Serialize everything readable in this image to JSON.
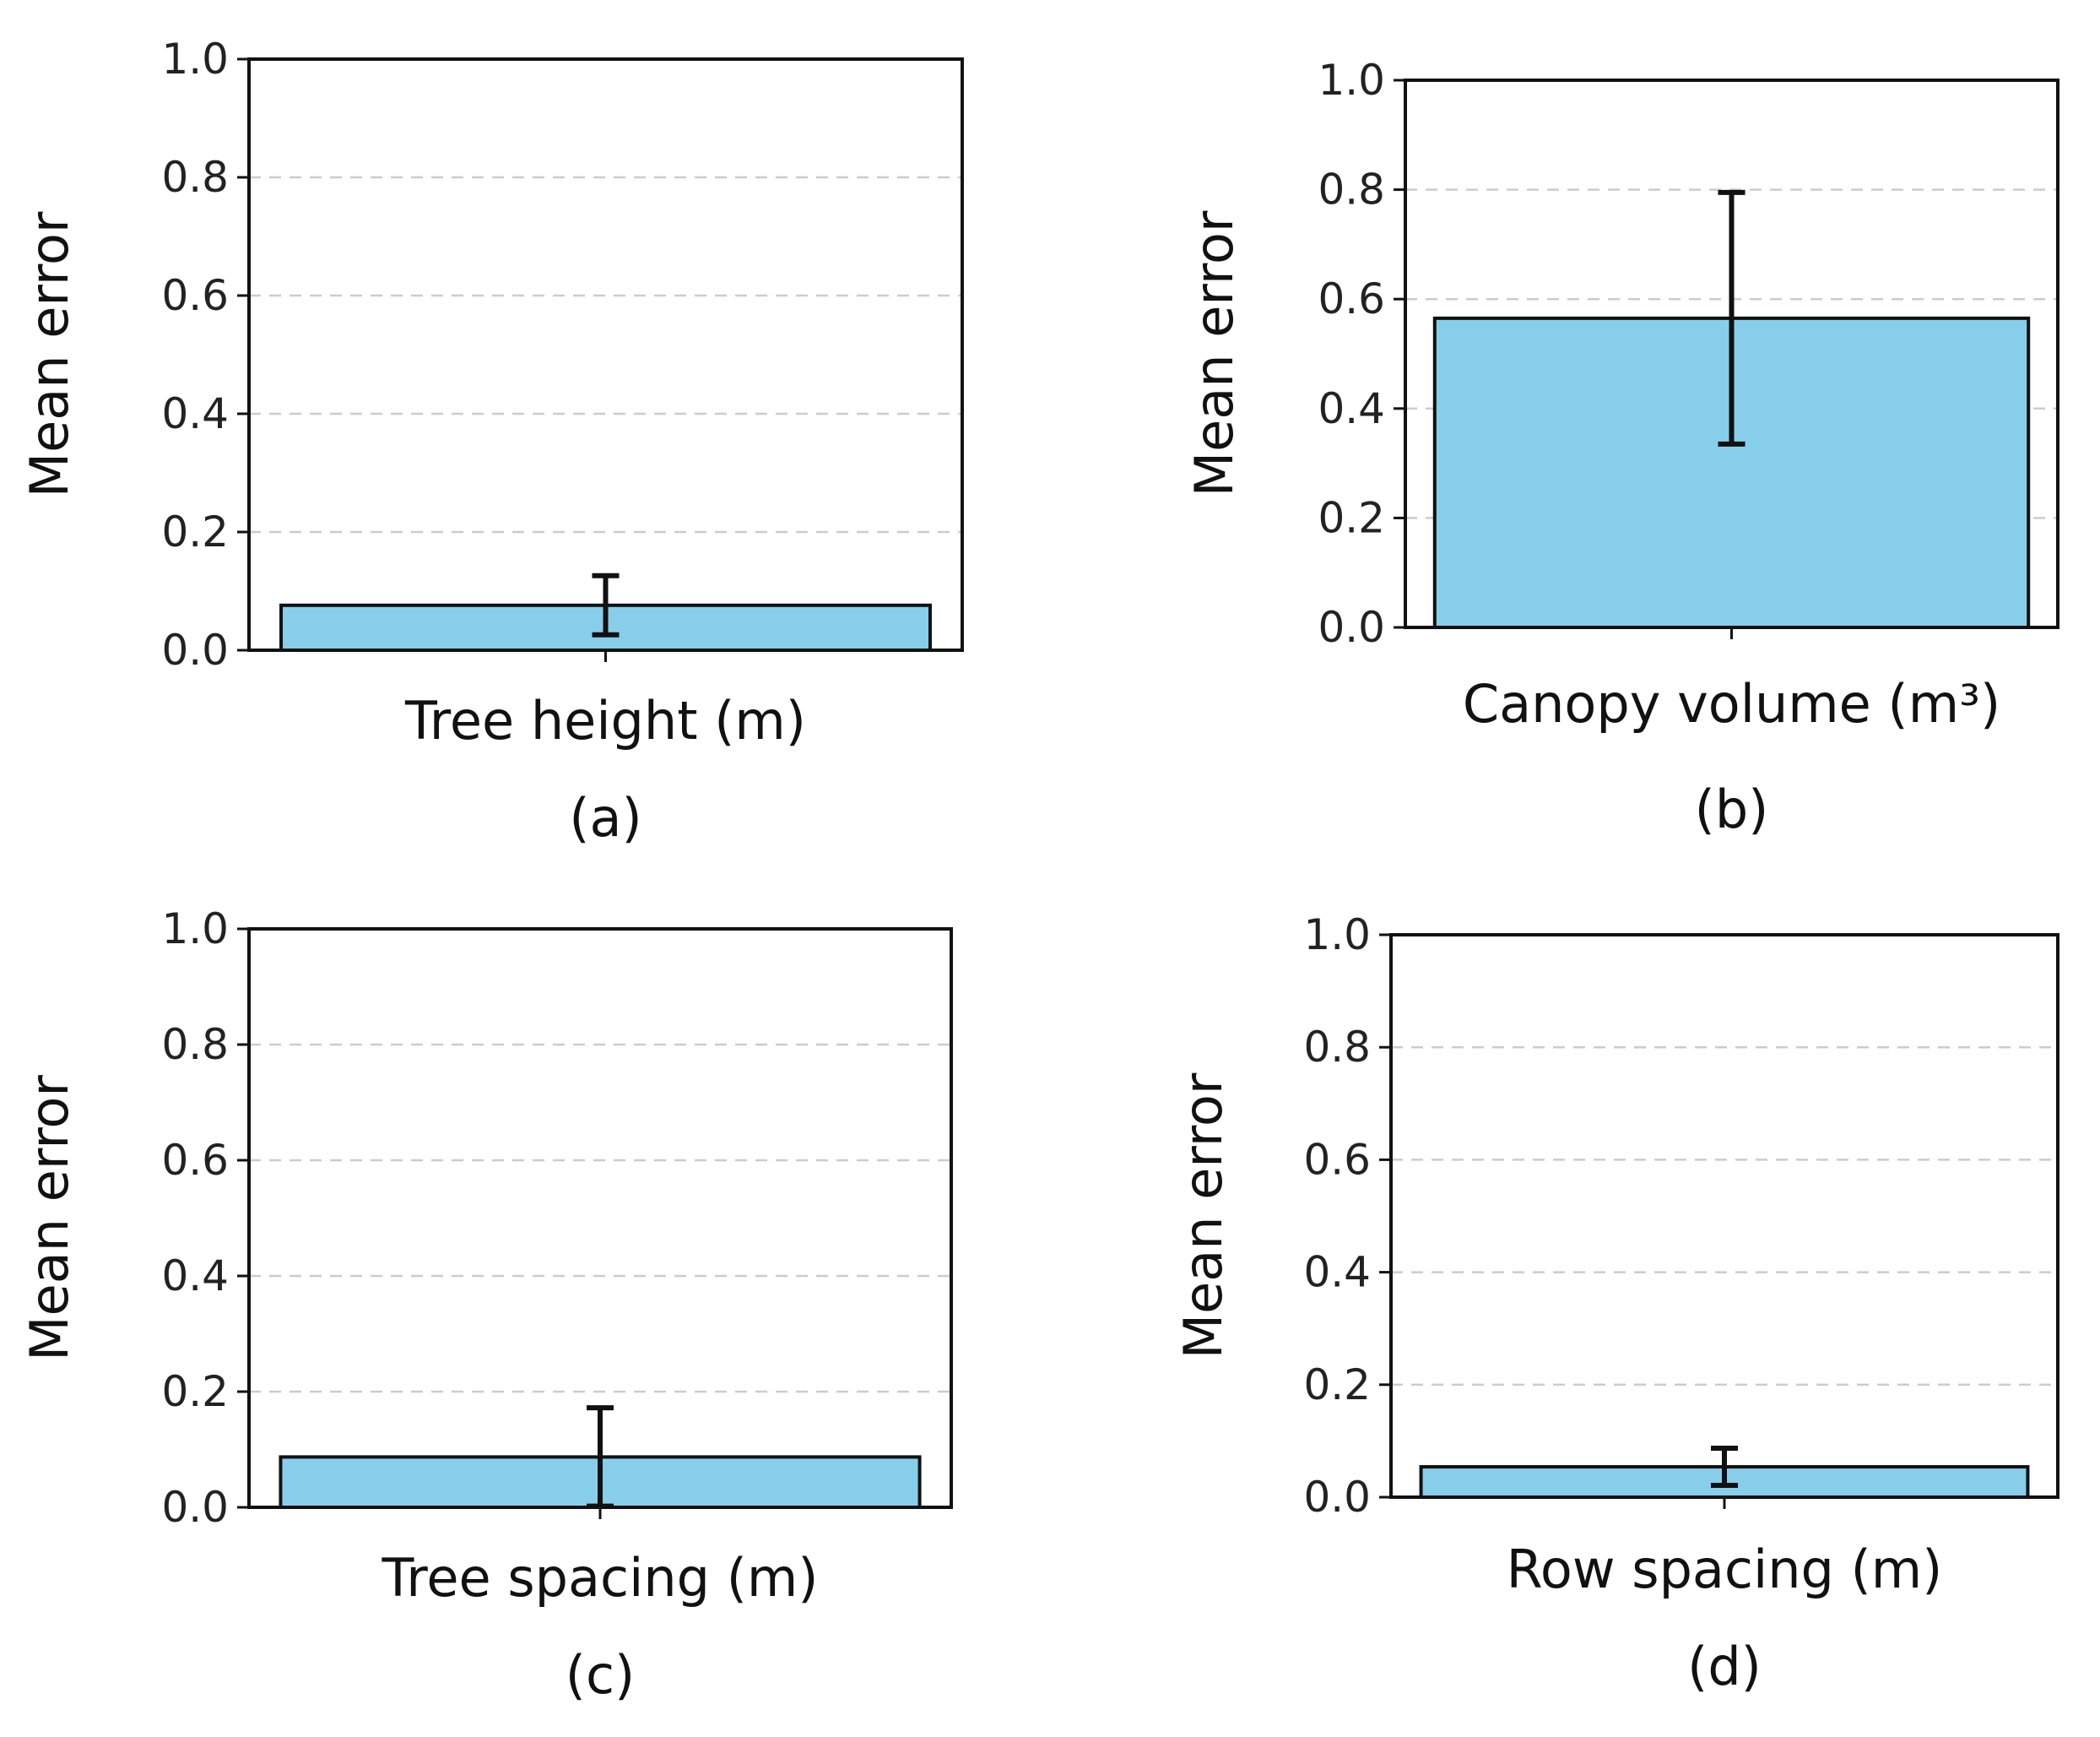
{
  "colors": {
    "bar_fill": "#87ceeb",
    "edge": "#111111",
    "grid": "#cccccc"
  },
  "chart_data": [
    {
      "type": "bar",
      "panel": "(a)",
      "categories": [
        ""
      ],
      "values": [
        0.076
      ],
      "error": [
        0.05
      ],
      "xlabel": "Tree height (m)",
      "ylabel": "Mean error",
      "ylim": [
        0,
        1.0
      ],
      "yticks": [
        "0.0",
        "0.2",
        "0.4",
        "0.6",
        "0.8",
        "1.0"
      ],
      "grid": "y dashed"
    },
    {
      "type": "bar",
      "panel": "(b)",
      "categories": [
        ""
      ],
      "values": [
        0.565
      ],
      "error": [
        0.23
      ],
      "xlabel": "Canopy volume (m³)",
      "ylabel": "Mean error",
      "ylim": [
        0,
        1.0
      ],
      "yticks": [
        "0.0",
        "0.2",
        "0.4",
        "0.6",
        "0.8",
        "1.0"
      ],
      "grid": "y dashed"
    },
    {
      "type": "bar",
      "panel": "(c)",
      "categories": [
        ""
      ],
      "values": [
        0.087
      ],
      "error": [
        0.085
      ],
      "xlabel": "Tree spacing (m)",
      "ylabel": "Mean error",
      "ylim": [
        0,
        1.0
      ],
      "yticks": [
        "0.0",
        "0.2",
        "0.4",
        "0.6",
        "0.8",
        "1.0"
      ],
      "grid": "y dashed"
    },
    {
      "type": "bar",
      "panel": "(d)",
      "categories": [
        ""
      ],
      "values": [
        0.054
      ],
      "error": [
        0.033
      ],
      "xlabel": "Row spacing (m)",
      "ylabel": "Mean error",
      "ylim": [
        0,
        1.0
      ],
      "yticks": [
        "0.0",
        "0.2",
        "0.4",
        "0.6",
        "0.8",
        "1.0"
      ],
      "grid": "y dashed"
    }
  ]
}
